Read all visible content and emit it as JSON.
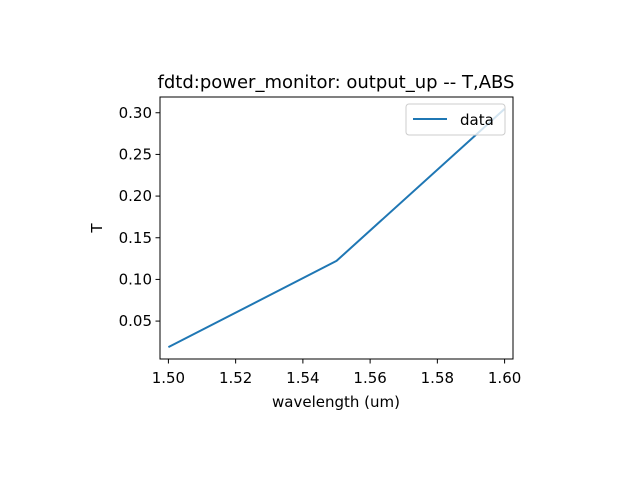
{
  "chart_data": {
    "type": "line",
    "title": "fdtd:power_monitor: output_up -- T,ABS",
    "xlabel": "wavelength (um)",
    "ylabel": "T",
    "xlim": [
      1.4975,
      1.6025
    ],
    "ylim": [
      0.0045,
      0.3189
    ],
    "x_ticks": [
      1.5,
      1.52,
      1.54,
      1.56,
      1.58,
      1.6
    ],
    "x_tick_labels": [
      "1.50",
      "1.52",
      "1.54",
      "1.56",
      "1.58",
      "1.60"
    ],
    "y_ticks": [
      0.05,
      0.1,
      0.15,
      0.2,
      0.25,
      0.3
    ],
    "y_tick_labels": [
      "0.05",
      "0.10",
      "0.15",
      "0.20",
      "0.25",
      "0.30"
    ],
    "grid": false,
    "legend_position": "top-right",
    "series": [
      {
        "name": "data",
        "color": "#1f77b4",
        "x": [
          1.5,
          1.55,
          1.6
        ],
        "y": [
          0.0188,
          0.1222,
          0.3046
        ]
      }
    ]
  }
}
